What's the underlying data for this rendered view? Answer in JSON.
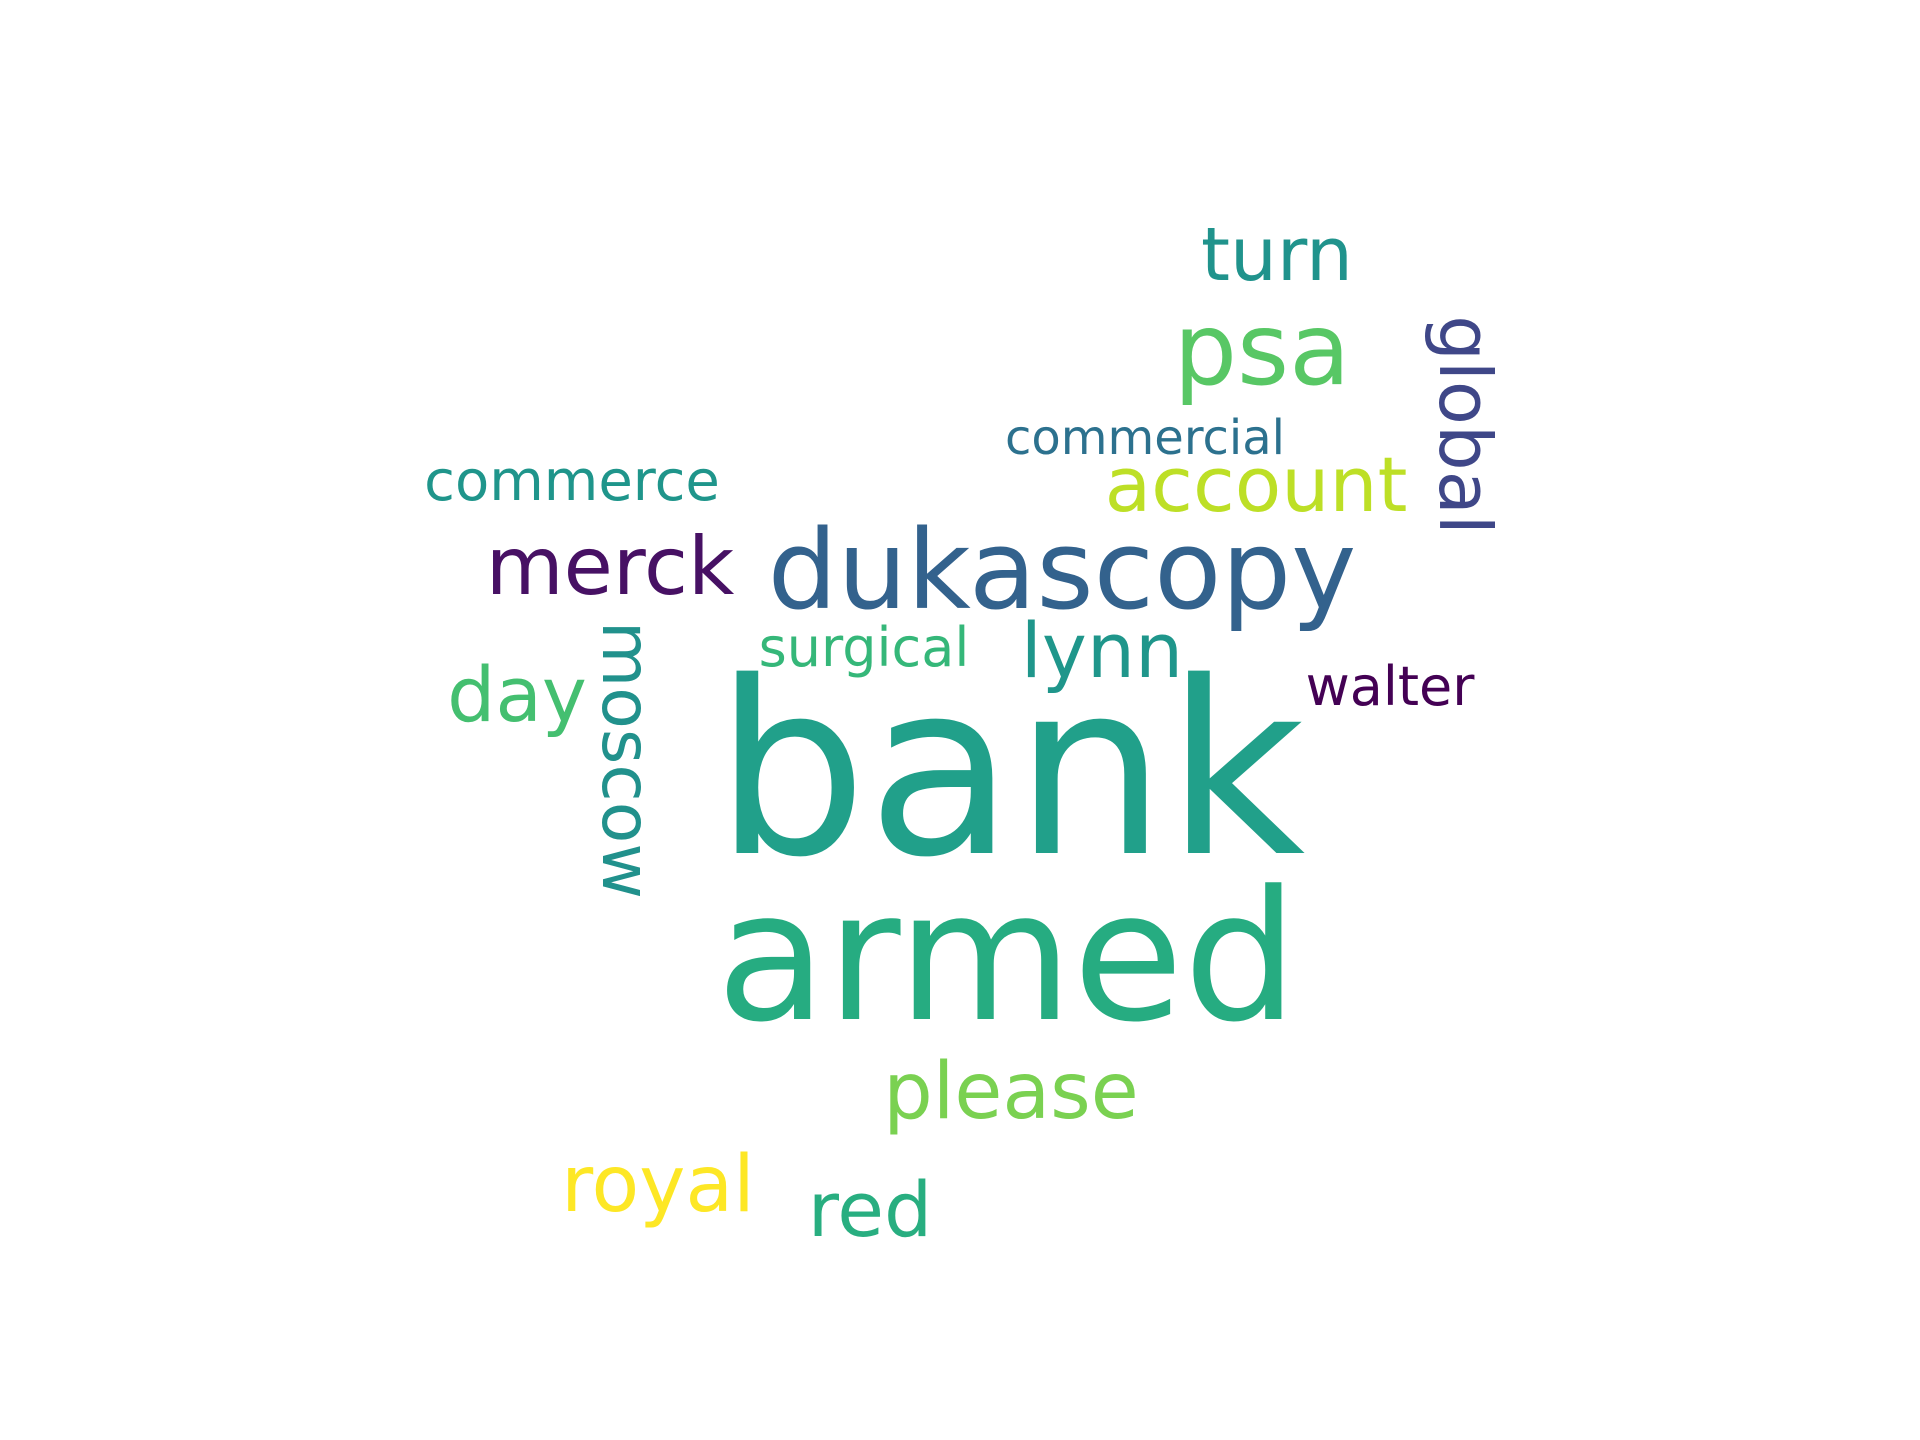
{
  "words": [
    {
      "id": "bank",
      "text": "bank",
      "color": "#21a08a",
      "orientation": "horizontal"
    },
    {
      "id": "armed",
      "text": "armed",
      "color": "#26ac81",
      "orientation": "horizontal"
    },
    {
      "id": "dukascopy",
      "text": "dukascopy",
      "color": "#33628d",
      "orientation": "horizontal"
    },
    {
      "id": "psa",
      "text": "psa",
      "color": "#58c765",
      "orientation": "horizontal"
    },
    {
      "id": "turn",
      "text": "turn",
      "color": "#20938c",
      "orientation": "horizontal"
    },
    {
      "id": "global",
      "text": "global",
      "color": "#3f4788",
      "orientation": "vertical"
    },
    {
      "id": "account",
      "text": "account",
      "color": "#bddf26",
      "orientation": "horizontal"
    },
    {
      "id": "commercial",
      "text": "commercial",
      "color": "#2c718e",
      "orientation": "horizontal"
    },
    {
      "id": "commerce",
      "text": "commerce",
      "color": "#1f958b",
      "orientation": "horizontal"
    },
    {
      "id": "merck",
      "text": "merck",
      "color": "#471164",
      "orientation": "horizontal"
    },
    {
      "id": "moscow",
      "text": "moscow",
      "color": "#21918c",
      "orientation": "vertical"
    },
    {
      "id": "day",
      "text": "day",
      "color": "#44bf70",
      "orientation": "horizontal"
    },
    {
      "id": "surgical",
      "text": "surgical",
      "color": "#35b779",
      "orientation": "horizontal"
    },
    {
      "id": "lynn",
      "text": "lynn",
      "color": "#1f968b",
      "orientation": "horizontal"
    },
    {
      "id": "walter",
      "text": "walter",
      "color": "#440154",
      "orientation": "horizontal"
    },
    {
      "id": "please",
      "text": "please",
      "color": "#7ad151",
      "orientation": "horizontal"
    },
    {
      "id": "royal",
      "text": "royal",
      "color": "#fde725",
      "orientation": "horizontal"
    },
    {
      "id": "red",
      "text": "red",
      "color": "#28ae80",
      "orientation": "horizontal"
    }
  ]
}
